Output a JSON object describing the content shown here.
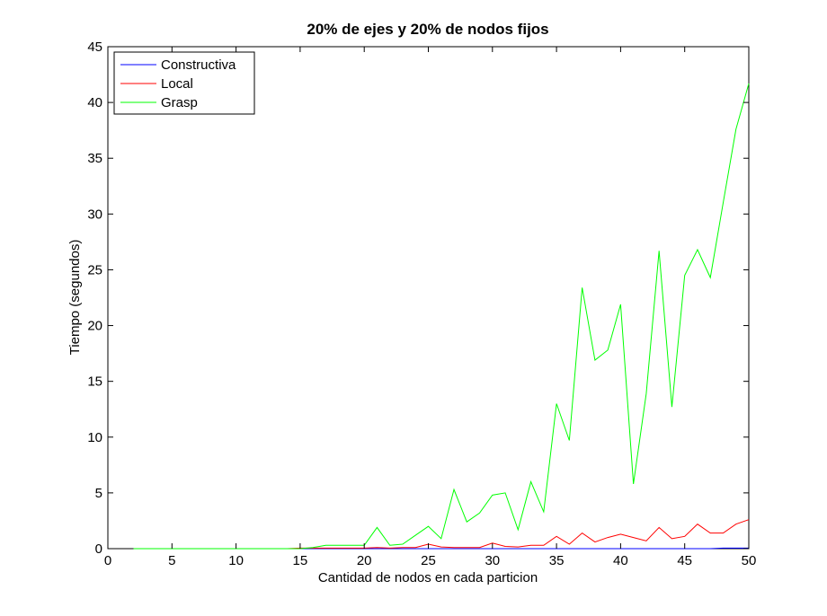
{
  "chart_data": {
    "type": "line",
    "title": "20% de ejes y 20% de nodos fijos",
    "xlabel": "Cantidad de nodos en cada particion",
    "ylabel": "Tiempo (segundos)",
    "xlim": [
      0,
      50
    ],
    "ylim": [
      0,
      45
    ],
    "xticks": [
      0,
      5,
      10,
      15,
      20,
      25,
      30,
      35,
      40,
      45,
      50
    ],
    "yticks": [
      0,
      5,
      10,
      15,
      20,
      25,
      30,
      35,
      40,
      45
    ],
    "grid": false,
    "legend_position": "top-left",
    "x": [
      2,
      3,
      4,
      5,
      6,
      7,
      8,
      9,
      10,
      11,
      12,
      13,
      14,
      15,
      16,
      17,
      18,
      19,
      20,
      21,
      22,
      23,
      24,
      25,
      26,
      27,
      28,
      29,
      30,
      31,
      32,
      33,
      34,
      35,
      36,
      37,
      38,
      39,
      40,
      41,
      42,
      43,
      44,
      45,
      46,
      47,
      48,
      49,
      50
    ],
    "series": [
      {
        "name": "Constructiva",
        "color": "#0000ff",
        "values": [
          0,
          0,
          0,
          0,
          0,
          0,
          0,
          0,
          0,
          0,
          0,
          0,
          0,
          0,
          0,
          0,
          0,
          0,
          0,
          0,
          0,
          0,
          0,
          0,
          0,
          0,
          0,
          0,
          0,
          0,
          0,
          0,
          0,
          0,
          0,
          0,
          0,
          0,
          0,
          0,
          0,
          0,
          0,
          0,
          0,
          0,
          0.05,
          0.05,
          0.05
        ]
      },
      {
        "name": "Local",
        "color": "#ff0000",
        "values": [
          0,
          0,
          0,
          0,
          0,
          0,
          0,
          0,
          0,
          0,
          0,
          0,
          0,
          0.05,
          0.05,
          0.05,
          0.05,
          0.05,
          0.05,
          0.1,
          0.05,
          0.1,
          0.1,
          0.4,
          0.15,
          0.1,
          0.1,
          0.1,
          0.5,
          0.2,
          0.15,
          0.3,
          0.3,
          1.1,
          0.4,
          1.4,
          0.6,
          1.0,
          1.3,
          1.0,
          0.7,
          1.9,
          0.9,
          1.1,
          2.2,
          1.4,
          1.4,
          2.2,
          2.6
        ]
      },
      {
        "name": "Grasp",
        "color": "#00ff00",
        "values": [
          0,
          0,
          0,
          0,
          0,
          0,
          0,
          0,
          0,
          0,
          0,
          0,
          0,
          0,
          0.1,
          0.3,
          0.3,
          0.3,
          0.3,
          1.9,
          0.3,
          0.4,
          1.2,
          2.0,
          0.9,
          5.3,
          2.4,
          3.2,
          4.8,
          5.0,
          1.7,
          6.0,
          3.3,
          13.0,
          9.7,
          23.4,
          16.9,
          17.8,
          21.9,
          5.8,
          13.9,
          26.7,
          12.7,
          24.5,
          26.8,
          24.3,
          31.0,
          37.6,
          41.7
        ]
      }
    ]
  }
}
